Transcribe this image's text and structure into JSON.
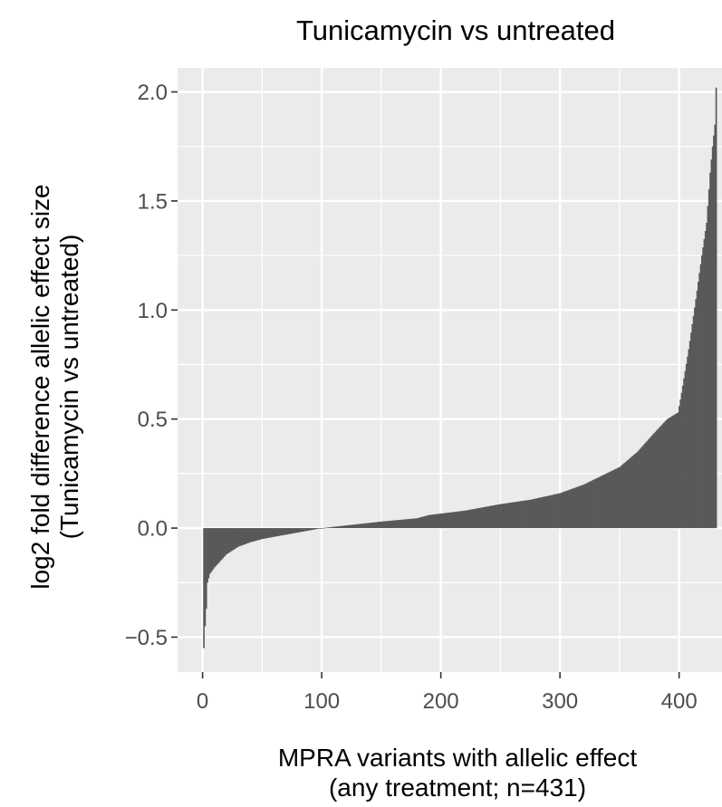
{
  "chart_data": {
    "type": "bar",
    "title": "Tunicamycin vs untreated",
    "xlabel": [
      "MPRA variants with allelic effect",
      "(any treatment; n=431)"
    ],
    "ylabel": [
      "log2 fold difference allelic effect size",
      "(Tunicamycin vs untreated)"
    ],
    "xlim": [
      -21,
      436
    ],
    "ylim": [
      -0.66,
      2.11
    ],
    "x_ticks": [
      0,
      100,
      200,
      300,
      400
    ],
    "x_tick_labels": [
      "0",
      "100",
      "200",
      "300",
      "400"
    ],
    "y_ticks": [
      -0.5,
      0.0,
      0.5,
      1.0,
      1.5,
      2.0
    ],
    "y_tick_labels": [
      "−0.5",
      "0.0",
      "0.5",
      "1.0",
      "1.5",
      "2.0"
    ],
    "grid": true,
    "legend": "none",
    "n": 431,
    "sorted_value_keypoints": [
      {
        "rank": 1,
        "value": -0.55
      },
      {
        "rank": 2,
        "value": -0.45
      },
      {
        "rank": 3,
        "value": -0.37
      },
      {
        "rank": 4,
        "value": -0.25
      },
      {
        "rank": 6,
        "value": -0.21
      },
      {
        "rank": 10,
        "value": -0.18
      },
      {
        "rank": 15,
        "value": -0.15
      },
      {
        "rank": 20,
        "value": -0.12
      },
      {
        "rank": 30,
        "value": -0.085
      },
      {
        "rank": 40,
        "value": -0.065
      },
      {
        "rank": 50,
        "value": -0.05
      },
      {
        "rank": 70,
        "value": -0.03
      },
      {
        "rank": 85,
        "value": -0.015
      },
      {
        "rank": 100,
        "value": 0.0
      },
      {
        "rank": 125,
        "value": 0.015
      },
      {
        "rank": 150,
        "value": 0.03
      },
      {
        "rank": 180,
        "value": 0.045
      },
      {
        "rank": 190,
        "value": 0.06
      },
      {
        "rank": 220,
        "value": 0.08
      },
      {
        "rank": 250,
        "value": 0.11
      },
      {
        "rank": 275,
        "value": 0.13
      },
      {
        "rank": 300,
        "value": 0.16
      },
      {
        "rank": 320,
        "value": 0.2
      },
      {
        "rank": 335,
        "value": 0.24
      },
      {
        "rank": 350,
        "value": 0.28
      },
      {
        "rank": 365,
        "value": 0.35
      },
      {
        "rank": 378,
        "value": 0.43
      },
      {
        "rank": 390,
        "value": 0.5
      },
      {
        "rank": 399,
        "value": 0.53
      },
      {
        "rank": 402,
        "value": 0.62
      },
      {
        "rank": 408,
        "value": 0.82
      },
      {
        "rank": 414,
        "value": 1.05
      },
      {
        "rank": 419,
        "value": 1.25
      },
      {
        "rank": 423,
        "value": 1.4
      },
      {
        "rank": 426,
        "value": 1.63
      },
      {
        "rank": 428,
        "value": 1.75
      },
      {
        "rank": 430,
        "value": 1.85
      },
      {
        "rank": 431,
        "value": 2.02
      }
    ]
  },
  "colors": {
    "panel": "#ebebeb",
    "grid_major": "#ffffff",
    "bar": "#595959",
    "tick_label": "#4d4d4d",
    "tick_mark": "#333333",
    "text": "#000000"
  }
}
